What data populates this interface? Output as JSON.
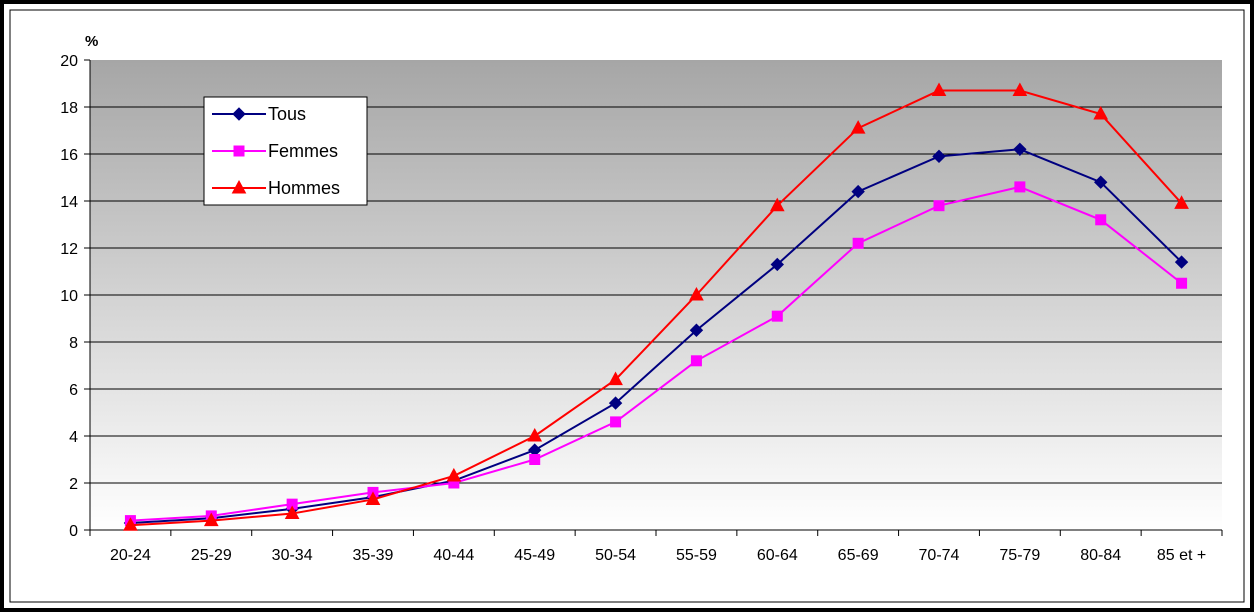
{
  "chart_data": {
    "type": "line",
    "title": "",
    "xlabel": "",
    "ylabel": "%",
    "ylim": [
      0,
      20
    ],
    "yticks": [
      "0",
      "2",
      "4",
      "6",
      "8",
      "10",
      "12",
      "14",
      "16",
      "18",
      "20"
    ],
    "grid": true,
    "legend_position": "top-left",
    "categories": [
      "20-24",
      "25-29",
      "30-34",
      "35-39",
      "40-44",
      "45-49",
      "50-54",
      "55-59",
      "60-64",
      "65-69",
      "70-74",
      "75-79",
      "80-84",
      "85 et +"
    ],
    "series": [
      {
        "name": "Tous",
        "color": "#000080",
        "marker": "diamond",
        "values": [
          0.3,
          0.5,
          0.9,
          1.4,
          2.1,
          3.4,
          5.4,
          8.5,
          11.3,
          14.4,
          15.9,
          16.2,
          14.8,
          11.4
        ]
      },
      {
        "name": "Femmes",
        "color": "#ff00ff",
        "marker": "square",
        "values": [
          0.4,
          0.6,
          1.1,
          1.6,
          2.0,
          3.0,
          4.6,
          7.2,
          9.1,
          12.2,
          13.8,
          14.6,
          13.2,
          10.5
        ]
      },
      {
        "name": "Hommes",
        "color": "#ff0000",
        "marker": "triangle",
        "values": [
          0.2,
          0.4,
          0.7,
          1.3,
          2.3,
          4.0,
          6.4,
          10.0,
          13.8,
          17.1,
          18.7,
          18.7,
          17.7,
          13.9
        ]
      }
    ]
  }
}
